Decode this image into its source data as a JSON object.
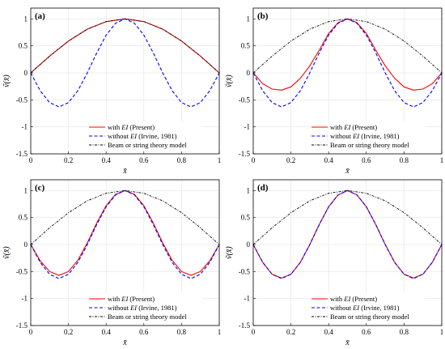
{
  "colors": {
    "with_ei": "#ff0000",
    "without_ei": "#0000ff",
    "beam_string": "#000000",
    "grid": "#e3e3e3",
    "axes": "#000000"
  },
  "legend_entries": [
    {
      "prefix": "with ",
      "ei": "EI",
      "suffix": " (Present)",
      "color_key": "with_ei",
      "dash": "solid"
    },
    {
      "prefix": "without ",
      "ei": "EI",
      "suffix": " (Irvine, 1981)",
      "color_key": "without_ei",
      "dash": "dashed"
    },
    {
      "prefix": "Beam or string theory model",
      "ei": "",
      "suffix": "",
      "color_key": "beam_string",
      "dash": "dashdot"
    }
  ],
  "chart_data": [
    {
      "panel": "(a)",
      "type": "line",
      "xlabel": "x̄",
      "ylabel": "ṽ(x̄)",
      "xlim": [
        0,
        1
      ],
      "ylim": [
        -1.5,
        1.2
      ],
      "xticks": [
        "0",
        "0.2",
        "0.4",
        "0.6",
        "0.8",
        "1"
      ],
      "yticks": [
        "-1.5",
        "-1",
        "-0.5",
        "0",
        "0.5",
        "1"
      ],
      "grid": true,
      "legend": "bottom-center",
      "series": [
        {
          "key": "with_ei",
          "x": [
            0,
            0.1,
            0.2,
            0.3,
            0.4,
            0.5,
            0.6,
            0.7,
            0.8,
            0.9,
            1
          ],
          "y": [
            0,
            0.31,
            0.59,
            0.81,
            0.95,
            1,
            0.95,
            0.81,
            0.59,
            0.31,
            0
          ]
        },
        {
          "key": "without_ei",
          "x": [
            0,
            0.05,
            0.1,
            0.15,
            0.2,
            0.25,
            0.3,
            0.35,
            0.4,
            0.45,
            0.5,
            0.55,
            0.6,
            0.65,
            0.7,
            0.75,
            0.8,
            0.85,
            0.9,
            0.95,
            1
          ],
          "y": [
            0,
            -0.33,
            -0.55,
            -0.63,
            -0.55,
            -0.33,
            0,
            0.37,
            0.7,
            0.92,
            1,
            0.92,
            0.7,
            0.37,
            0,
            -0.33,
            -0.55,
            -0.63,
            -0.55,
            -0.33,
            0
          ]
        },
        {
          "key": "beam_string",
          "x": [
            0,
            0.1,
            0.2,
            0.3,
            0.4,
            0.5,
            0.6,
            0.7,
            0.8,
            0.9,
            1
          ],
          "y": [
            0,
            0.31,
            0.59,
            0.81,
            0.95,
            1,
            0.95,
            0.81,
            0.59,
            0.31,
            0
          ]
        }
      ]
    },
    {
      "panel": "(b)",
      "type": "line",
      "xlabel": "x̄",
      "ylabel": "ṽ(x̄)",
      "xlim": [
        0,
        1
      ],
      "ylim": [
        -1.5,
        1.2
      ],
      "xticks": [
        "0",
        "0.2",
        "0.4",
        "0.6",
        "0.8",
        "1"
      ],
      "yticks": [
        "-1.5",
        "-1",
        "-0.5",
        "0",
        "0.5",
        "1"
      ],
      "grid": true,
      "legend": "bottom-center",
      "series": [
        {
          "key": "with_ei",
          "x": [
            0,
            0.05,
            0.1,
            0.15,
            0.2,
            0.25,
            0.3,
            0.35,
            0.4,
            0.45,
            0.5,
            0.55,
            0.6,
            0.65,
            0.7,
            0.75,
            0.8,
            0.85,
            0.9,
            0.95,
            1
          ],
          "y": [
            0,
            -0.2,
            -0.3,
            -0.32,
            -0.26,
            -0.1,
            0.13,
            0.42,
            0.73,
            0.93,
            1,
            0.93,
            0.73,
            0.42,
            0.13,
            -0.1,
            -0.26,
            -0.32,
            -0.3,
            -0.2,
            0
          ]
        },
        {
          "key": "without_ei",
          "x": [
            0,
            0.05,
            0.1,
            0.15,
            0.2,
            0.25,
            0.3,
            0.35,
            0.4,
            0.45,
            0.5,
            0.55,
            0.6,
            0.65,
            0.7,
            0.75,
            0.8,
            0.85,
            0.9,
            0.95,
            1
          ],
          "y": [
            0,
            -0.33,
            -0.55,
            -0.63,
            -0.55,
            -0.33,
            0,
            0.37,
            0.7,
            0.92,
            1,
            0.92,
            0.7,
            0.37,
            0,
            -0.33,
            -0.55,
            -0.63,
            -0.55,
            -0.33,
            0
          ]
        },
        {
          "key": "beam_string",
          "x": [
            0,
            0.1,
            0.2,
            0.3,
            0.4,
            0.5,
            0.6,
            0.7,
            0.8,
            0.9,
            1
          ],
          "y": [
            0,
            0.31,
            0.59,
            0.81,
            0.95,
            1,
            0.95,
            0.81,
            0.59,
            0.31,
            0
          ]
        }
      ]
    },
    {
      "panel": "(c)",
      "type": "line",
      "xlabel": "x̄",
      "ylabel": "ṽ(x̄)",
      "xlim": [
        0,
        1
      ],
      "ylim": [
        -1.5,
        1.2
      ],
      "xticks": [
        "0",
        "0.2",
        "0.4",
        "0.6",
        "0.8",
        "1"
      ],
      "yticks": [
        "-1.5",
        "-1",
        "-0.5",
        "0",
        "0.5",
        "1"
      ],
      "grid": true,
      "legend": "bottom-center",
      "series": [
        {
          "key": "with_ei",
          "x": [
            0,
            0.05,
            0.1,
            0.15,
            0.2,
            0.25,
            0.3,
            0.35,
            0.4,
            0.45,
            0.5,
            0.55,
            0.6,
            0.65,
            0.7,
            0.75,
            0.8,
            0.85,
            0.9,
            0.95,
            1
          ],
          "y": [
            0,
            -0.3,
            -0.5,
            -0.57,
            -0.5,
            -0.29,
            0.03,
            0.4,
            0.72,
            0.93,
            1,
            0.93,
            0.72,
            0.4,
            0.03,
            -0.29,
            -0.5,
            -0.57,
            -0.5,
            -0.3,
            0
          ]
        },
        {
          "key": "without_ei",
          "x": [
            0,
            0.05,
            0.1,
            0.15,
            0.2,
            0.25,
            0.3,
            0.35,
            0.4,
            0.45,
            0.5,
            0.55,
            0.6,
            0.65,
            0.7,
            0.75,
            0.8,
            0.85,
            0.9,
            0.95,
            1
          ],
          "y": [
            0,
            -0.33,
            -0.55,
            -0.63,
            -0.55,
            -0.33,
            0,
            0.37,
            0.7,
            0.92,
            1,
            0.92,
            0.7,
            0.37,
            0,
            -0.33,
            -0.55,
            -0.63,
            -0.55,
            -0.33,
            0
          ]
        },
        {
          "key": "beam_string",
          "x": [
            0,
            0.1,
            0.2,
            0.3,
            0.4,
            0.5,
            0.6,
            0.7,
            0.8,
            0.9,
            1
          ],
          "y": [
            0,
            0.31,
            0.59,
            0.81,
            0.95,
            1,
            0.95,
            0.81,
            0.59,
            0.31,
            0
          ]
        }
      ]
    },
    {
      "panel": "(d)",
      "type": "line",
      "xlabel": "x̄",
      "ylabel": "ṽ(x̄)",
      "xlim": [
        0,
        1
      ],
      "ylim": [
        -1.5,
        1.2
      ],
      "xticks": [
        "0",
        "0.2",
        "0.4",
        "0.6",
        "0.8",
        "1"
      ],
      "yticks": [
        "-1.5",
        "-1",
        "-0.5",
        "0",
        "0.5",
        "1"
      ],
      "grid": true,
      "legend": "bottom-center",
      "series": [
        {
          "key": "with_ei",
          "x": [
            0,
            0.05,
            0.1,
            0.15,
            0.2,
            0.25,
            0.3,
            0.35,
            0.4,
            0.45,
            0.5,
            0.55,
            0.6,
            0.65,
            0.7,
            0.75,
            0.8,
            0.85,
            0.9,
            0.95,
            1
          ],
          "y": [
            0,
            -0.33,
            -0.55,
            -0.62,
            -0.55,
            -0.33,
            0,
            0.37,
            0.7,
            0.92,
            1,
            0.92,
            0.7,
            0.37,
            0,
            -0.33,
            -0.55,
            -0.62,
            -0.55,
            -0.33,
            0
          ]
        },
        {
          "key": "without_ei",
          "x": [
            0,
            0.05,
            0.1,
            0.15,
            0.2,
            0.25,
            0.3,
            0.35,
            0.4,
            0.45,
            0.5,
            0.55,
            0.6,
            0.65,
            0.7,
            0.75,
            0.8,
            0.85,
            0.9,
            0.95,
            1
          ],
          "y": [
            0,
            -0.33,
            -0.55,
            -0.63,
            -0.55,
            -0.33,
            0,
            0.37,
            0.7,
            0.92,
            1,
            0.92,
            0.7,
            0.37,
            0,
            -0.33,
            -0.55,
            -0.63,
            -0.55,
            -0.33,
            0
          ]
        },
        {
          "key": "beam_string",
          "x": [
            0,
            0.1,
            0.2,
            0.3,
            0.4,
            0.5,
            0.6,
            0.7,
            0.8,
            0.9,
            1
          ],
          "y": [
            0,
            0.31,
            0.59,
            0.81,
            0.95,
            1,
            0.95,
            0.81,
            0.59,
            0.31,
            0
          ]
        }
      ]
    }
  ]
}
